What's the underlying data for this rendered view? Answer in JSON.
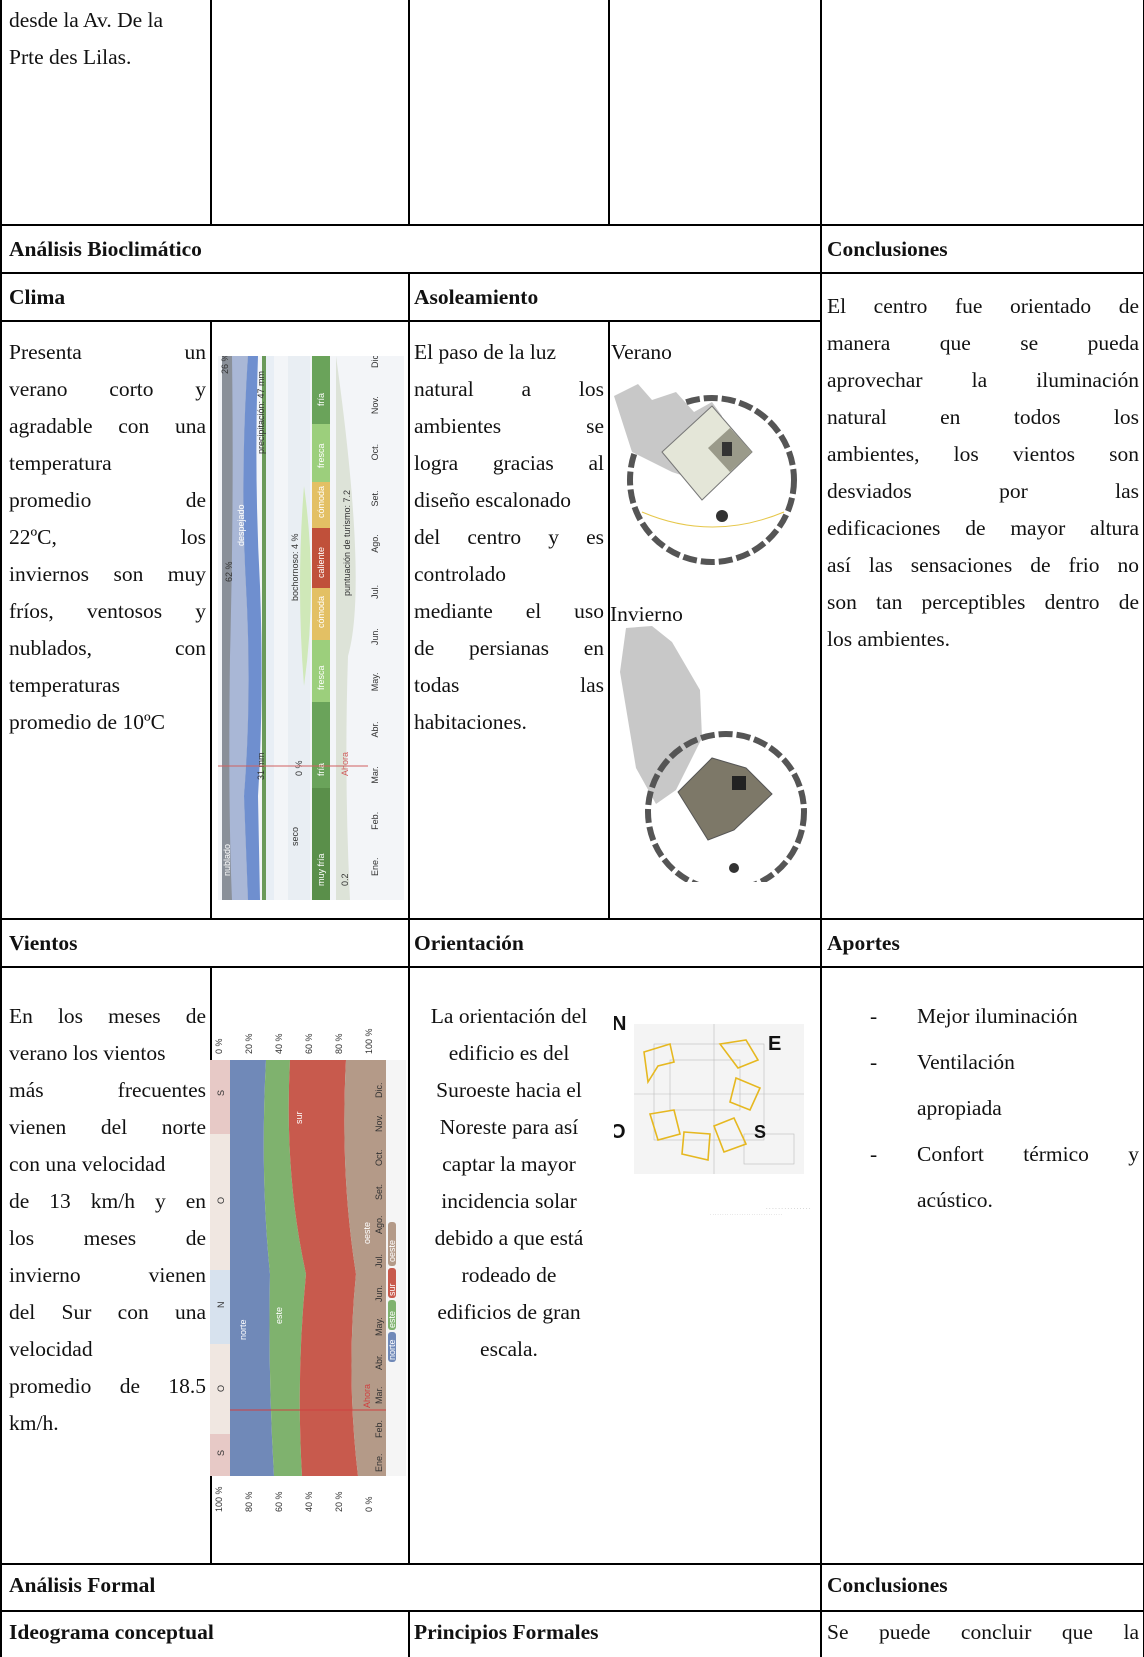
{
  "top_row": {
    "text_lines": [
      "desde la Av. De la",
      "Prte des Lilas."
    ]
  },
  "bioclimatico": {
    "header": "Análisis Bioclimático",
    "conclusions_header": "Conclusiones",
    "clima": {
      "title": "Clima",
      "lines": [
        "Presenta un",
        "verano corto y",
        "agradable con una",
        "temperatura",
        "promedio de",
        "22ºC, los",
        "inviernos son muy",
        "fríos, ventosos y",
        "nublados, con",
        "temperaturas",
        "promedio de 10ºC"
      ],
      "chart": {
        "months": [
          "Ene.",
          "Feb.",
          "Mar.",
          "Abr.",
          "May.",
          "Jun.",
          "Jul.",
          "Ago.",
          "Set.",
          "Oct.",
          "Nov.",
          "Dic."
        ],
        "band_cloud": {
          "top": "26 %",
          "mid": "62 %",
          "despejado": "despejado",
          "nublado": "nublado"
        },
        "band_precip": {
          "top": "precipitación: 47 mm",
          "bottom": "31 mm"
        },
        "band_humid": {
          "bochornoso": "bochornoso: 4 %",
          "seco": "seco",
          "pct": "0 %"
        },
        "band_temp": [
          "muy fría",
          "fría",
          "fresca",
          "cómoda",
          "caliente",
          "cómoda",
          "fresca",
          "fría"
        ],
        "band_tourism": {
          "score": "puntuación de turismo: 7.2",
          "low": "0.2",
          "ahora": "Ahora"
        }
      }
    },
    "asoleamiento": {
      "title": "Asoleamiento",
      "lines": [
        "El paso de la luz",
        "natural a los",
        "ambientes se",
        "logra gracias al",
        "diseño escalonado",
        "del centro y es",
        "controlado",
        "mediante el uso",
        "de persianas en",
        "todas las",
        "habitaciones."
      ],
      "verano": "Verano",
      "invierno": "Invierno"
    },
    "conclusions": {
      "lines": [
        "El centro fue orientado de",
        "manera que se pueda",
        "aprovechar la iluminación",
        "natural en todos los",
        "ambientes, los vientos son",
        "desviados por las",
        "edificaciones de mayor altura",
        "así las sensaciones de frio no",
        "son tan perceptibles dentro de",
        "los ambientes."
      ]
    }
  },
  "vientos": {
    "title": "Vientos",
    "lines": [
      "En los meses de",
      "verano los vientos",
      "más frecuentes",
      "vienen del norte",
      "con una velocidad",
      "de 13 km/h y en",
      "los meses de",
      "invierno vienen",
      "del Sur con una",
      "velocidad",
      "promedio de 18.5",
      "km/h."
    ],
    "chart": {
      "top_ticks": [
        "0 %",
        "20 %",
        "40 %",
        "60 %",
        "80 %",
        "100 %"
      ],
      "bottom_ticks": [
        "100 %",
        "80 %",
        "60 %",
        "40 %",
        "20 %",
        "0 %"
      ],
      "months": [
        "Ene.",
        "Feb.",
        "Mar.",
        "Abr.",
        "May.",
        "Jun.",
        "Jul.",
        "Ago.",
        "Set.",
        "Oct.",
        "Nov.",
        "Dic."
      ],
      "labels": {
        "norte": "norte",
        "este": "este",
        "sur": "sur",
        "oeste": "oeste",
        "ahora": "Ahora"
      },
      "side": [
        "S",
        "O",
        "N",
        "O",
        "S"
      ],
      "legend": [
        "oeste",
        "sur",
        "este",
        "norte"
      ]
    }
  },
  "orientacion": {
    "title": "Orientación",
    "lines": [
      "La orientación del",
      "edificio es del",
      "Suroeste hacia el",
      "Noreste para así",
      "captar la mayor",
      "incidencia solar",
      "debido a que está",
      "rodeado de",
      "edificios de gran",
      "escala."
    ],
    "compass": {
      "n": "N",
      "e": "E",
      "o": "O",
      "s": "S"
    }
  },
  "aportes": {
    "title": "Aportes",
    "items": [
      {
        "dash": "-",
        "lines": [
          "Mejor iluminación"
        ]
      },
      {
        "dash": "-",
        "lines": [
          "Ventilación",
          "apropiada"
        ]
      },
      {
        "dash": "-",
        "lines": [
          "Confort térmico y",
          "acústico."
        ]
      }
    ]
  },
  "formal": {
    "header": "Análisis Formal",
    "conclusions_header": "Conclusiones",
    "ideograma": "Ideograma conceptual",
    "principios": "Principios Formales",
    "conclusion_line": "Se puede concluir que la"
  },
  "colors": {
    "cloud_dark": "#8a9099",
    "cloud_blue": "#6f8fcf",
    "precip": "#6a9a5a",
    "temp_green": "#6aa35a",
    "temp_red": "#c0503a",
    "temp_yellow": "#e3c064",
    "wind_blue": "#7089b8",
    "wind_green": "#7fb26e",
    "wind_red": "#c85a4d",
    "wind_brown": "#b49a88"
  }
}
